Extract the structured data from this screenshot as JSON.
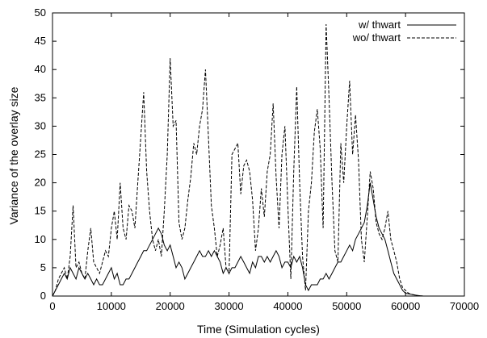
{
  "chart_data": {
    "type": "line",
    "title": "",
    "xlabel": "Time (Simulation cycles)",
    "ylabel": "Variance of the overlay size",
    "xlim": [
      0,
      70000
    ],
    "ylim": [
      0,
      50
    ],
    "xticks": [
      "0",
      "10000",
      "20000",
      "30000",
      "40000",
      "50000",
      "60000",
      "70000"
    ],
    "yticks": [
      "0",
      "5",
      "10",
      "15",
      "20",
      "25",
      "30",
      "35",
      "40",
      "45",
      "50"
    ],
    "grid": false,
    "legend_position": "top-right",
    "series": [
      {
        "name": "w/ thwart",
        "style": "solid",
        "color": "#000000",
        "x": [
          0,
          500,
          1000,
          1500,
          2000,
          2500,
          3000,
          3500,
          4000,
          4500,
          5000,
          5500,
          6000,
          6500,
          7000,
          7500,
          8000,
          8500,
          9000,
          9500,
          10000,
          10500,
          11000,
          11500,
          12000,
          12500,
          13000,
          13500,
          14000,
          14500,
          15000,
          15500,
          16000,
          16500,
          17000,
          17500,
          18000,
          18500,
          19000,
          19500,
          20000,
          20500,
          21000,
          21500,
          22000,
          22500,
          23000,
          23500,
          24000,
          24500,
          25000,
          25500,
          26000,
          26500,
          27000,
          27500,
          28000,
          28500,
          29000,
          29500,
          30000,
          30500,
          31000,
          31500,
          32000,
          32500,
          33000,
          33500,
          34000,
          34500,
          35000,
          35500,
          36000,
          36500,
          37000,
          37500,
          38000,
          38500,
          39000,
          39500,
          40000,
          40500,
          41000,
          41500,
          42000,
          42500,
          43000,
          43500,
          44000,
          44500,
          45000,
          45500,
          46000,
          46500,
          47000,
          47500,
          48000,
          48500,
          49000,
          49500,
          50000,
          50500,
          51000,
          51500,
          52000,
          52500,
          53000,
          53500,
          54000,
          54500,
          55000,
          55500,
          56000,
          56500,
          57000,
          57500,
          58000,
          58500,
          59000,
          59500,
          60000,
          61000,
          62000,
          63000,
          65000,
          70000
        ],
        "y": [
          0,
          1,
          2,
          3,
          4,
          3,
          5,
          4,
          3,
          5,
          4,
          3,
          4,
          3,
          2,
          3,
          2,
          2,
          3,
          4,
          5,
          3,
          4,
          2,
          2,
          3,
          3,
          4,
          5,
          6,
          7,
          8,
          8,
          9,
          10,
          11,
          12,
          11,
          9,
          8,
          9,
          7,
          5,
          6,
          5,
          3,
          4,
          5,
          6,
          7,
          8,
          7,
          7,
          8,
          7,
          8,
          7,
          6,
          4,
          5,
          4,
          5,
          5,
          6,
          7,
          6,
          5,
          4,
          6,
          5,
          7,
          7,
          6,
          7,
          6,
          7,
          8,
          7,
          5,
          6,
          6,
          5,
          7,
          6,
          7,
          5,
          2,
          1,
          2,
          2,
          2,
          3,
          3,
          4,
          3,
          4,
          5,
          6,
          6,
          7,
          8,
          9,
          8,
          10,
          11,
          12,
          13,
          16,
          20,
          17,
          14,
          12,
          11,
          10,
          8,
          6,
          4,
          3,
          2,
          1,
          0.5,
          0.3,
          0.1,
          0,
          0,
          0
        ]
      },
      {
        "name": "wo/ thwart",
        "style": "dashed",
        "color": "#000000",
        "x": [
          0,
          500,
          1000,
          1500,
          2000,
          2500,
          3000,
          3500,
          4000,
          4500,
          5000,
          5500,
          6000,
          6500,
          7000,
          7500,
          8000,
          8500,
          9000,
          9500,
          10000,
          10500,
          11000,
          11500,
          12000,
          12500,
          13000,
          13500,
          14000,
          14500,
          15000,
          15500,
          16000,
          16500,
          17000,
          17500,
          18000,
          18500,
          19000,
          19500,
          20000,
          20500,
          21000,
          21500,
          22000,
          22500,
          23000,
          23500,
          24000,
          24500,
          25000,
          25500,
          26000,
          26500,
          27000,
          27500,
          28000,
          28500,
          29000,
          29500,
          30000,
          30500,
          31000,
          31500,
          32000,
          32500,
          33000,
          33500,
          34000,
          34500,
          35000,
          35500,
          36000,
          36500,
          37000,
          37500,
          38000,
          38500,
          39000,
          39500,
          40000,
          40500,
          41000,
          41500,
          42000,
          42500,
          43000,
          43500,
          44000,
          44500,
          45000,
          45500,
          46000,
          46500,
          47000,
          47500,
          48000,
          48500,
          49000,
          49500,
          50000,
          50500,
          51000,
          51500,
          52000,
          52500,
          53000,
          53500,
          54000,
          54500,
          55000,
          55500,
          56000,
          56500,
          57000,
          57500,
          58000,
          58500,
          59000,
          59500,
          60000,
          60500,
          61000,
          62000,
          63000,
          65000,
          70000
        ],
        "y": [
          0,
          1,
          3,
          4,
          5,
          3,
          7,
          16,
          5,
          6,
          4,
          3,
          8,
          12,
          6,
          5,
          4,
          6,
          8,
          7,
          12,
          15,
          10,
          20,
          12,
          10,
          16,
          15,
          12,
          20,
          28,
          36,
          22,
          15,
          10,
          8,
          10,
          7,
          15,
          25,
          42,
          30,
          31,
          13,
          10,
          12,
          17,
          21,
          27,
          25,
          30,
          33,
          40,
          28,
          16,
          12,
          7,
          9,
          12,
          5,
          4,
          25,
          26,
          27,
          18,
          23,
          24,
          22,
          17,
          8,
          12,
          19,
          14,
          22,
          25,
          34,
          21,
          12,
          25,
          30,
          16,
          3,
          22,
          37,
          20,
          7,
          1,
          15,
          20,
          29,
          33,
          26,
          12,
          48,
          35,
          20,
          8,
          6,
          27,
          20,
          30,
          38,
          25,
          32,
          24,
          10,
          6,
          14,
          22,
          19,
          13,
          11,
          10,
          12,
          15,
          10,
          8,
          6,
          3,
          1.5,
          1,
          0.5,
          0.3,
          0.1,
          0,
          0,
          0
        ]
      }
    ]
  }
}
